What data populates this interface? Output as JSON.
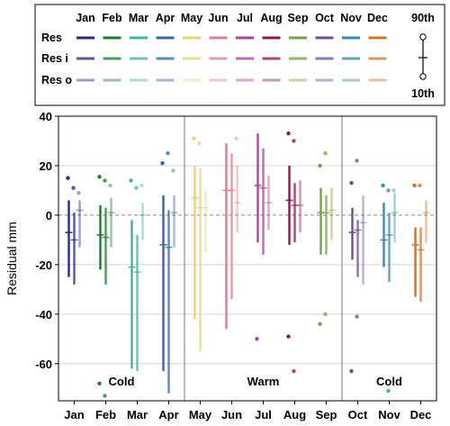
{
  "chart_data": {
    "type": "range-plot",
    "ylabel": "Residual mm",
    "ylim": [
      -75,
      40
    ],
    "yticks": [
      40,
      20,
      0,
      -20,
      -40,
      -60
    ],
    "grid": true,
    "zero_line": "dashed",
    "legend_placement": "top",
    "categories": [
      "Jan",
      "Feb",
      "Mar",
      "Apr",
      "May",
      "Jun",
      "Jul",
      "Aug",
      "Sep",
      "Oct",
      "Nov",
      "Dec"
    ],
    "legend": {
      "rows": [
        "Res",
        "Res i",
        "Res o"
      ],
      "percentile_labels": [
        "90th",
        "10th"
      ]
    },
    "seasons": [
      {
        "label": "Cold",
        "start": 0,
        "end": 3
      },
      {
        "label": "Warm",
        "start": 4,
        "end": 8
      },
      {
        "label": "Cold",
        "start": 9,
        "end": 11
      }
    ],
    "colors": [
      "#2b2a7e",
      "#1e7b32",
      "#3fb59b",
      "#3b65a0",
      "#e9d174",
      "#dd7e91",
      "#a7469d",
      "#8b1a4a",
      "#79a147",
      "#6d5091",
      "#3a8bb0",
      "#d0742d"
    ],
    "series": [
      {
        "name": "Res",
        "values": [
          {
            "p10": -25,
            "p90": 6,
            "median": -7,
            "outlier_high": 15,
            "outlier_low": null
          },
          {
            "p10": -22,
            "p90": 4,
            "median": -8,
            "outlier_high": 15.5,
            "outlier_low": -68
          },
          {
            "p10": -62,
            "p90": -2,
            "median": -21,
            "outlier_high": 14,
            "outlier_low": null
          },
          {
            "p10": -63,
            "p90": 8,
            "median": -12,
            "outlier_high": 21,
            "outlier_low": null
          },
          {
            "p10": -42,
            "p90": 20,
            "median": 7,
            "outlier_high": 31,
            "outlier_low": null
          },
          {
            "p10": -46,
            "p90": 29,
            "median": 10,
            "outlier_high": null,
            "outlier_low": null
          },
          {
            "p10": -11,
            "p90": 33,
            "median": 12,
            "outlier_high": null,
            "outlier_low": -50
          },
          {
            "p10": -12,
            "p90": 20,
            "median": 6,
            "outlier_high": 33,
            "outlier_low": -49
          },
          {
            "p10": -16,
            "p90": 11,
            "median": 1,
            "outlier_high": 20,
            "outlier_low": -44
          },
          {
            "p10": -18,
            "p90": 3,
            "median": -7,
            "outlier_high": 13,
            "outlier_low": -63
          },
          {
            "p10": -21,
            "p90": 5,
            "median": -10,
            "outlier_high": 12,
            "outlier_low": null
          },
          {
            "p10": -33,
            "p90": -5,
            "median": -12,
            "outlier_high": 12,
            "outlier_low": null
          }
        ]
      },
      {
        "name": "Res i",
        "values": [
          {
            "p10": -28,
            "p90": 1,
            "median": -10,
            "outlier_high": 11,
            "outlier_low": null
          },
          {
            "p10": -28,
            "p90": 3,
            "median": -9,
            "outlier_high": 14,
            "outlier_low": -73
          },
          {
            "p10": -63,
            "p90": -8,
            "median": -23,
            "outlier_high": 11,
            "outlier_low": null
          },
          {
            "p10": -72,
            "p90": 2,
            "median": -13,
            "outlier_high": 25,
            "outlier_low": null
          },
          {
            "p10": -55,
            "p90": 19,
            "median": 3,
            "outlier_high": 29,
            "outlier_low": null
          },
          {
            "p10": -34,
            "p90": 25,
            "median": 10,
            "outlier_high": null,
            "outlier_low": null
          },
          {
            "p10": -16,
            "p90": 27,
            "median": 11,
            "outlier_high": null,
            "outlier_low": null
          },
          {
            "p10": -11,
            "p90": 13,
            "median": 4,
            "outlier_high": 30,
            "outlier_low": -63
          },
          {
            "p10": -16,
            "p90": 8,
            "median": 1,
            "outlier_high": 25,
            "outlier_low": -40
          },
          {
            "p10": -25,
            "p90": -2,
            "median": -6,
            "outlier_high": 22,
            "outlier_low": -41
          },
          {
            "p10": -27,
            "p90": 1,
            "median": -8,
            "outlier_high": 10,
            "outlier_low": -71
          },
          {
            "p10": -35,
            "p90": -5,
            "median": -14,
            "outlier_high": 12,
            "outlier_low": null
          }
        ]
      },
      {
        "name": "Res o",
        "values": [
          {
            "p10": -13,
            "p90": 6,
            "median": 2,
            "outlier_high": 9,
            "outlier_low": null
          },
          {
            "p10": -13,
            "p90": 7,
            "median": 1,
            "outlier_high": 12,
            "outlier_low": null
          },
          {
            "p10": -10,
            "p90": 5,
            "median": 0,
            "outlier_high": 12,
            "outlier_low": null
          },
          {
            "p10": -13,
            "p90": 8,
            "median": 1,
            "outlier_high": 18,
            "outlier_low": null
          },
          {
            "p10": -15,
            "p90": 10,
            "median": 3,
            "outlier_high": null,
            "outlier_low": null
          },
          {
            "p10": -7,
            "p90": 20,
            "median": 5,
            "outlier_high": 31,
            "outlier_low": null
          },
          {
            "p10": -6,
            "p90": 16,
            "median": 5,
            "outlier_high": null,
            "outlier_low": null
          },
          {
            "p10": -7,
            "p90": 14,
            "median": 4,
            "outlier_high": null,
            "outlier_low": null
          },
          {
            "p10": -10,
            "p90": 11,
            "median": 2,
            "outlier_high": null,
            "outlier_low": null
          },
          {
            "p10": -28,
            "p90": 8,
            "median": -3,
            "outlier_high": null,
            "outlier_low": null
          },
          {
            "p10": -11,
            "p90": 9,
            "median": 1,
            "outlier_high": 10,
            "outlier_low": null
          },
          {
            "p10": -11,
            "p90": 6,
            "median": 1,
            "outlier_high": null,
            "outlier_low": null
          }
        ]
      }
    ]
  }
}
